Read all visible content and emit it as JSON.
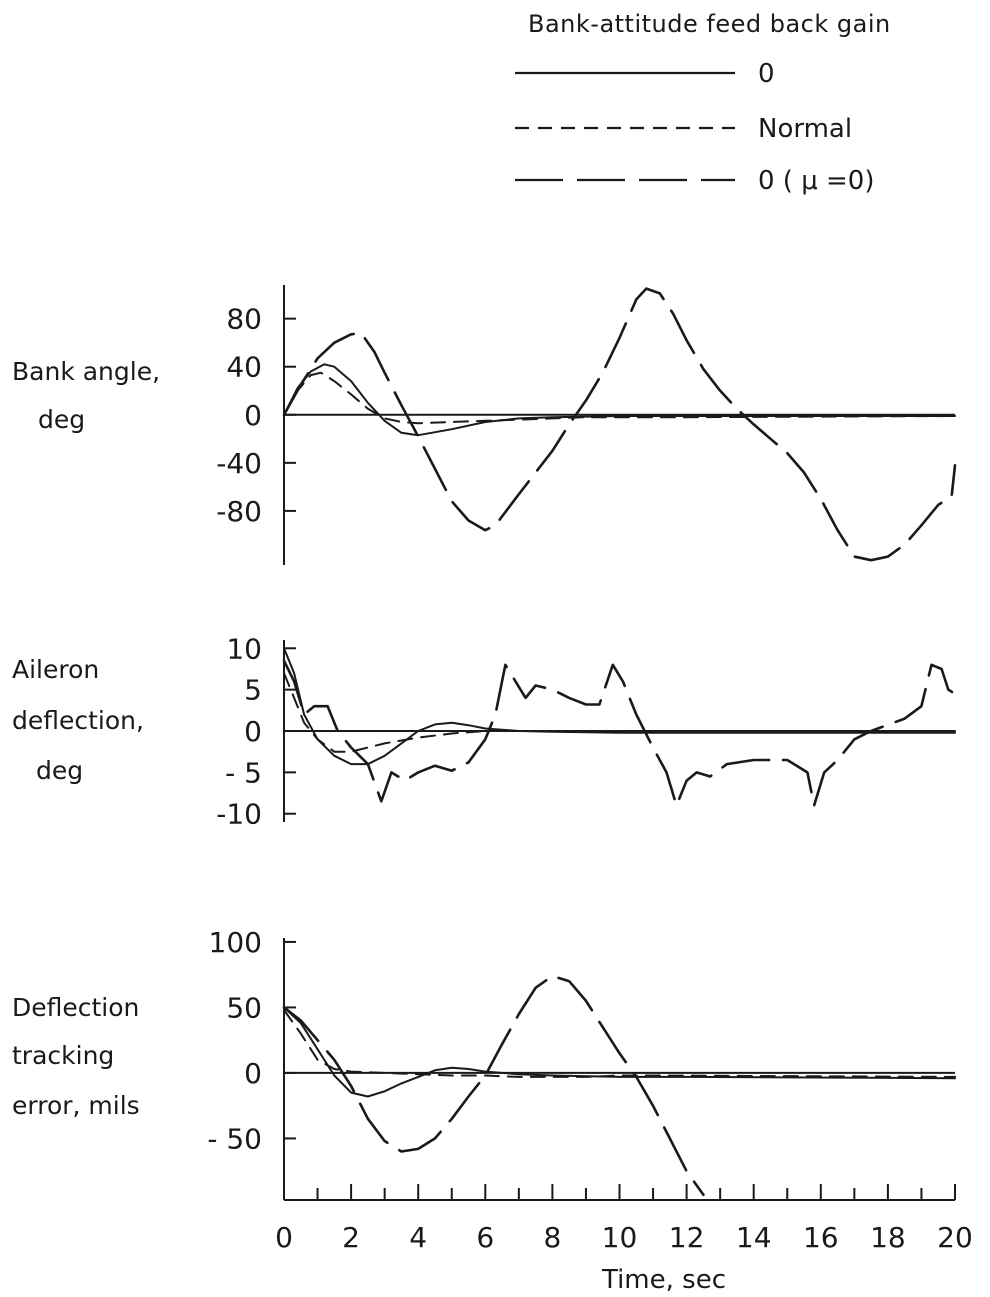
{
  "legend": {
    "title": "Bank-attitude feed back gain",
    "entries": [
      {
        "label": "0",
        "style": "solid"
      },
      {
        "label": "Normal",
        "style": "short-dash"
      },
      {
        "label": "0  ( μ =0)",
        "style": "long-dash"
      }
    ]
  },
  "colors": {
    "ink": "#1a1a1a",
    "background": "#ffffff"
  },
  "chart_data": [
    {
      "type": "line",
      "ylabel_lines": [
        "Bank angle,",
        "deg"
      ],
      "yticks": [
        80,
        40,
        0,
        -40,
        -80
      ],
      "ytick_labels": [
        "80",
        "40",
        "0",
        "-40",
        "-80"
      ],
      "ylim": [
        -125,
        108
      ],
      "series": [
        {
          "style": "solid",
          "points": [
            [
              0,
              0
            ],
            [
              0.4,
              22
            ],
            [
              0.8,
              36
            ],
            [
              1.2,
              42
            ],
            [
              1.5,
              40
            ],
            [
              2.0,
              28
            ],
            [
              2.5,
              10
            ],
            [
              3.0,
              -5
            ],
            [
              3.5,
              -15
            ],
            [
              4.0,
              -17
            ],
            [
              5.0,
              -12
            ],
            [
              6.0,
              -6
            ],
            [
              7.0,
              -3
            ],
            [
              8.0,
              -2
            ],
            [
              10.0,
              -1
            ],
            [
              12.0,
              -1
            ],
            [
              20.0,
              -1
            ]
          ]
        },
        {
          "style": "short-dash",
          "points": [
            [
              0,
              0
            ],
            [
              0.4,
              20
            ],
            [
              0.8,
              33
            ],
            [
              1.1,
              35
            ],
            [
              1.5,
              28
            ],
            [
              2.0,
              17
            ],
            [
              2.5,
              5
            ],
            [
              3.0,
              -3
            ],
            [
              3.5,
              -6
            ],
            [
              4.0,
              -7
            ],
            [
              5.0,
              -6
            ],
            [
              6.0,
              -5
            ],
            [
              7.0,
              -4
            ],
            [
              8.0,
              -3
            ],
            [
              9.0,
              -2
            ],
            [
              10.0,
              -2
            ],
            [
              12.0,
              -2
            ],
            [
              20.0,
              -1
            ]
          ]
        },
        {
          "style": "long-dash",
          "points": [
            [
              0,
              0
            ],
            [
              0.5,
              25
            ],
            [
              1.0,
              47
            ],
            [
              1.5,
              60
            ],
            [
              2.0,
              67
            ],
            [
              2.3,
              68
            ],
            [
              2.7,
              52
            ],
            [
              3.0,
              35
            ],
            [
              3.5,
              8
            ],
            [
              4.0,
              -18
            ],
            [
              4.5,
              -45
            ],
            [
              5.0,
              -72
            ],
            [
              5.5,
              -88
            ],
            [
              6.0,
              -96
            ],
            [
              6.3,
              -92
            ],
            [
              7.0,
              -66
            ],
            [
              8.0,
              -30
            ],
            [
              8.5,
              -8
            ],
            [
              9.0,
              12
            ],
            [
              9.5,
              35
            ],
            [
              10.0,
              64
            ],
            [
              10.5,
              96
            ],
            [
              10.8,
              105
            ],
            [
              11.2,
              101
            ],
            [
              11.6,
              84
            ],
            [
              12.0,
              62
            ],
            [
              12.5,
              38
            ],
            [
              13.0,
              20
            ],
            [
              13.5,
              5
            ],
            [
              14.0,
              -8
            ],
            [
              14.5,
              -20
            ],
            [
              15.0,
              -32
            ],
            [
              15.5,
              -48
            ],
            [
              16.0,
              -70
            ],
            [
              16.5,
              -96
            ],
            [
              17.0,
              -118
            ],
            [
              17.5,
              -121
            ],
            [
              18.0,
              -118
            ],
            [
              18.5,
              -108
            ],
            [
              19.0,
              -92
            ],
            [
              19.5,
              -75
            ],
            [
              19.9,
              -68
            ],
            [
              20.0,
              -42
            ]
          ]
        }
      ]
    },
    {
      "type": "line",
      "ylabel_lines": [
        "Aileron",
        "deflection,",
        "deg"
      ],
      "yticks": [
        10,
        5,
        0,
        -5,
        -10
      ],
      "ytick_labels": [
        "10",
        "5",
        "0",
        "- 5",
        "-10"
      ],
      "ylim": [
        -11,
        11
      ],
      "series": [
        {
          "style": "solid",
          "points": [
            [
              0,
              10
            ],
            [
              0.3,
              7
            ],
            [
              0.6,
              2
            ],
            [
              1.0,
              -1
            ],
            [
              1.5,
              -3
            ],
            [
              2.0,
              -4
            ],
            [
              2.5,
              -4
            ],
            [
              3.0,
              -3
            ],
            [
              3.5,
              -1.5
            ],
            [
              4.0,
              0
            ],
            [
              4.5,
              0.8
            ],
            [
              5.0,
              1
            ],
            [
              5.5,
              0.7
            ],
            [
              6.0,
              0.3
            ],
            [
              7.0,
              0
            ],
            [
              8.0,
              -0.1
            ],
            [
              10.0,
              -0.2
            ],
            [
              20.0,
              -0.2
            ]
          ]
        },
        {
          "style": "short-dash",
          "points": [
            [
              0,
              7
            ],
            [
              0.3,
              4
            ],
            [
              0.6,
              1
            ],
            [
              1.0,
              -1
            ],
            [
              1.5,
              -2.5
            ],
            [
              2.0,
              -2.5
            ],
            [
              2.5,
              -2
            ],
            [
              3.0,
              -1.5
            ],
            [
              4.0,
              -0.8
            ],
            [
              5.0,
              -0.3
            ],
            [
              6.0,
              0
            ],
            [
              8.0,
              0
            ],
            [
              20.0,
              0
            ]
          ]
        },
        {
          "style": "long-dash",
          "points": [
            [
              0,
              8.5
            ],
            [
              0.3,
              6
            ],
            [
              0.6,
              2
            ],
            [
              0.9,
              3
            ],
            [
              1.3,
              3
            ],
            [
              1.6,
              0
            ],
            [
              2.0,
              -2
            ],
            [
              2.5,
              -4
            ],
            [
              2.9,
              -8.5
            ],
            [
              3.2,
              -5
            ],
            [
              3.6,
              -6
            ],
            [
              4.0,
              -5
            ],
            [
              4.5,
              -4.2
            ],
            [
              5.0,
              -4.8
            ],
            [
              5.5,
              -3.8
            ],
            [
              6.0,
              -1
            ],
            [
              6.3,
              2
            ],
            [
              6.6,
              8
            ],
            [
              6.9,
              6
            ],
            [
              7.2,
              4
            ],
            [
              7.5,
              5.5
            ],
            [
              8.0,
              5
            ],
            [
              8.5,
              4
            ],
            [
              9.0,
              3.2
            ],
            [
              9.4,
              3.2
            ],
            [
              9.8,
              8
            ],
            [
              10.1,
              6
            ],
            [
              10.5,
              2
            ],
            [
              11.0,
              -2
            ],
            [
              11.4,
              -5
            ],
            [
              11.7,
              -9
            ],
            [
              12.0,
              -6
            ],
            [
              12.3,
              -5
            ],
            [
              12.7,
              -5.5
            ],
            [
              13.2,
              -4
            ],
            [
              14.0,
              -3.5
            ],
            [
              15.0,
              -3.5
            ],
            [
              15.6,
              -5
            ],
            [
              15.8,
              -9
            ],
            [
              16.1,
              -5
            ],
            [
              16.5,
              -3.5
            ],
            [
              17.0,
              -1
            ],
            [
              17.5,
              0
            ],
            [
              18.5,
              1.5
            ],
            [
              19.0,
              3
            ],
            [
              19.3,
              8
            ],
            [
              19.6,
              7.5
            ],
            [
              19.8,
              5
            ],
            [
              20.0,
              4.5
            ]
          ]
        }
      ]
    },
    {
      "type": "line",
      "ylabel_lines": [
        "Deflection",
        "tracking",
        "error, mils"
      ],
      "yticks": [
        100,
        50,
        0,
        -50
      ],
      "ytick_labels": [
        "100",
        "50",
        "0",
        "- 50"
      ],
      "ylim": [
        -97,
        103
      ],
      "xlabel": "Time, sec",
      "xticks": [
        0,
        2,
        4,
        6,
        8,
        10,
        12,
        14,
        16,
        18,
        20
      ],
      "xtick_labels": [
        "0",
        "2",
        "4",
        "6",
        "8",
        "10",
        "12",
        "14",
        "16",
        "18",
        "20"
      ],
      "xlim": [
        0,
        20
      ],
      "series": [
        {
          "style": "solid",
          "points": [
            [
              0,
              50
            ],
            [
              0.5,
              38
            ],
            [
              1.0,
              18
            ],
            [
              1.5,
              -2
            ],
            [
              2.0,
              -15
            ],
            [
              2.5,
              -18
            ],
            [
              3.0,
              -14
            ],
            [
              3.5,
              -8
            ],
            [
              4.0,
              -3
            ],
            [
              4.5,
              2
            ],
            [
              5.0,
              4
            ],
            [
              5.5,
              3
            ],
            [
              6.0,
              1
            ],
            [
              7.0,
              -1
            ],
            [
              8.0,
              -2
            ],
            [
              10.0,
              -3
            ],
            [
              12.0,
              -3
            ],
            [
              20.0,
              -4
            ]
          ]
        },
        {
          "style": "short-dash",
          "points": [
            [
              0,
              48
            ],
            [
              0.5,
              30
            ],
            [
              1.0,
              10
            ],
            [
              1.5,
              3
            ],
            [
              2.0,
              1
            ],
            [
              3.0,
              0
            ],
            [
              4.0,
              -1
            ],
            [
              5.0,
              -2
            ],
            [
              6.0,
              -2
            ],
            [
              7.0,
              -3
            ],
            [
              8.0,
              -3
            ],
            [
              9.0,
              -3
            ],
            [
              10.0,
              -2
            ],
            [
              11.0,
              -2
            ],
            [
              20.0,
              -3
            ]
          ]
        },
        {
          "style": "long-dash",
          "points": [
            [
              0,
              50
            ],
            [
              0.5,
              40
            ],
            [
              1.0,
              25
            ],
            [
              1.5,
              10
            ],
            [
              2.0,
              -10
            ],
            [
              2.5,
              -35
            ],
            [
              3.0,
              -52
            ],
            [
              3.5,
              -60
            ],
            [
              4.0,
              -58
            ],
            [
              4.5,
              -50
            ],
            [
              5.0,
              -35
            ],
            [
              5.5,
              -18
            ],
            [
              6.0,
              -2
            ],
            [
              6.5,
              22
            ],
            [
              7.0,
              45
            ],
            [
              7.5,
              65
            ],
            [
              8.0,
              74
            ],
            [
              8.5,
              70
            ],
            [
              9.0,
              55
            ],
            [
              9.5,
              35
            ],
            [
              10.0,
              15
            ],
            [
              10.5,
              -3
            ],
            [
              11.0,
              -25
            ],
            [
              11.5,
              -50
            ],
            [
              12.0,
              -75
            ],
            [
              12.5,
              -93
            ]
          ]
        }
      ]
    }
  ]
}
